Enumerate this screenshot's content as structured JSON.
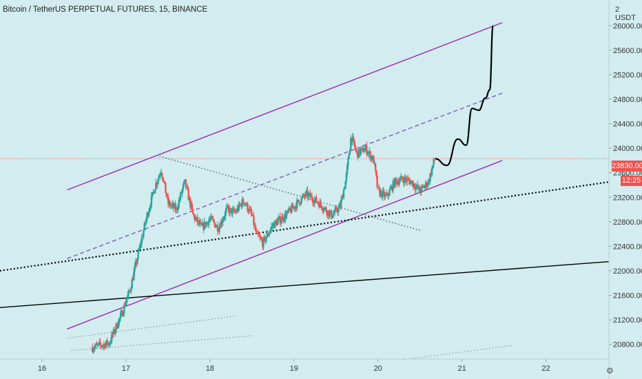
{
  "header": {
    "title": "Bitcoin / TetherUS PERPETUAL FUTURES, 15, BINANCE",
    "unit_label": "2 USDT",
    "settings_icon": "gear-icon"
  },
  "price_axis": {
    "current_price_label": "23830.00",
    "countdown_label": "12:25",
    "prev_close_partial": "23",
    "tag_color": "#ef5350"
  },
  "chart_data": {
    "type": "candlestick",
    "instrument": "Bitcoin / TetherUS PERPETUAL FUTURES",
    "interval": "15",
    "exchange": "BINANCE",
    "x_ticks": [
      "16",
      "17",
      "18",
      "19",
      "20",
      "21",
      "22"
    ],
    "y_ticks": [
      20800,
      21200,
      21600,
      22000,
      22400,
      22800,
      23200,
      23600,
      24000,
      24400,
      24800,
      25200,
      25600,
      26000
    ],
    "ylim": [
      20560,
      26420
    ],
    "xlim": [
      15.5,
      22.75
    ],
    "current_price": 23830,
    "price_path": [
      [
        16.6,
        20750
      ],
      [
        16.8,
        20820
      ],
      [
        16.95,
        21300
      ],
      [
        17.05,
        21700
      ],
      [
        17.15,
        22300
      ],
      [
        17.25,
        22900
      ],
      [
        17.35,
        23400
      ],
      [
        17.42,
        23650
      ],
      [
        17.5,
        23100
      ],
      [
        17.6,
        23000
      ],
      [
        17.7,
        23450
      ],
      [
        17.8,
        22900
      ],
      [
        17.9,
        22700
      ],
      [
        18.0,
        22850
      ],
      [
        18.1,
        22700
      ],
      [
        18.2,
        23000
      ],
      [
        18.3,
        22950
      ],
      [
        18.4,
        23150
      ],
      [
        18.5,
        22900
      ],
      [
        18.55,
        22600
      ],
      [
        18.63,
        22450
      ],
      [
        18.75,
        22750
      ],
      [
        18.9,
        22900
      ],
      [
        19.0,
        23050
      ],
      [
        19.15,
        23250
      ],
      [
        19.3,
        23100
      ],
      [
        19.45,
        22900
      ],
      [
        19.55,
        23050
      ],
      [
        19.62,
        23500
      ],
      [
        19.68,
        24200
      ],
      [
        19.75,
        23900
      ],
      [
        19.85,
        24000
      ],
      [
        19.95,
        23800
      ],
      [
        20.0,
        23300
      ],
      [
        20.1,
        23200
      ],
      [
        20.2,
        23450
      ],
      [
        20.3,
        23500
      ],
      [
        20.4,
        23450
      ],
      [
        20.5,
        23300
      ],
      [
        20.6,
        23450
      ],
      [
        20.65,
        23700
      ],
      [
        20.68,
        23830
      ]
    ],
    "projection": [
      [
        20.68,
        23830
      ],
      [
        20.82,
        23720
      ],
      [
        20.95,
        24150
      ],
      [
        21.05,
        24050
      ],
      [
        21.12,
        24650
      ],
      [
        21.2,
        24620
      ],
      [
        21.28,
        24820
      ],
      [
        21.33,
        24950
      ],
      [
        21.37,
        26000
      ]
    ],
    "drawings": [
      {
        "name": "channel-upper-line",
        "style": "solid",
        "color": "#9c27b0",
        "points": [
          [
            16.3,
            23320
          ],
          [
            21.48,
            26050
          ]
        ]
      },
      {
        "name": "channel-lower-line",
        "style": "solid",
        "color": "#9c27b0",
        "points": [
          [
            16.3,
            21050
          ],
          [
            21.48,
            23800
          ]
        ]
      },
      {
        "name": "channel-mid-line",
        "style": "dashed",
        "color": "#7e57c2",
        "points": [
          [
            16.3,
            22200
          ],
          [
            21.48,
            24900
          ]
        ]
      },
      {
        "name": "trend-line-dotted",
        "style": "dotted",
        "color": "#000000",
        "points": [
          [
            15.5,
            22000
          ],
          [
            22.75,
            23450
          ]
        ]
      },
      {
        "name": "trend-line-solid",
        "style": "solid",
        "color": "#000000",
        "points": [
          [
            15.5,
            21400
          ],
          [
            22.75,
            22150
          ]
        ]
      },
      {
        "name": "descending-line",
        "style": "dotted",
        "color": "#555555",
        "points": [
          [
            17.4,
            23870
          ],
          [
            20.5,
            22660
          ]
        ]
      },
      {
        "name": "faint-line-1",
        "style": "dotted",
        "color": "#555555",
        "points": [
          [
            16.3,
            20900
          ],
          [
            18.3,
            21260
          ]
        ]
      },
      {
        "name": "faint-line-2",
        "style": "dotted",
        "color": "#555555",
        "points": [
          [
            16.35,
            20700
          ],
          [
            18.5,
            20940
          ]
        ]
      },
      {
        "name": "faint-line-3",
        "style": "dotted",
        "color": "#555555",
        "points": [
          [
            20.3,
            20550
          ],
          [
            21.6,
            20780
          ]
        ]
      }
    ],
    "price_line_color": "#ef5350",
    "up_color": "#26a69a",
    "down_color": "#ef5350",
    "grid": false
  }
}
